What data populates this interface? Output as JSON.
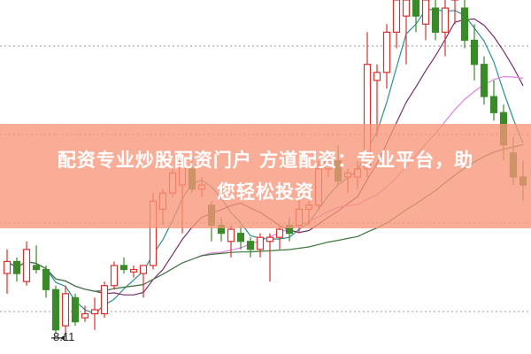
{
  "chart_data": {
    "type": "candlestick",
    "ylim": [
      7.9,
      12.3
    ],
    "grid": "dotted horizontal",
    "low_marker": "8.11",
    "candles": [
      [
        8.9,
        9.2,
        8.65,
        9.05
      ],
      [
        9.05,
        9.1,
        8.8,
        8.9
      ],
      [
        8.8,
        9.3,
        8.75,
        9.2
      ],
      [
        9.0,
        9.25,
        8.9,
        8.95
      ],
      [
        8.95,
        9.0,
        8.6,
        8.7
      ],
      [
        8.7,
        8.75,
        8.15,
        8.2
      ],
      [
        8.25,
        8.75,
        8.11,
        8.65
      ],
      [
        8.6,
        8.65,
        8.25,
        8.3
      ],
      [
        8.35,
        8.5,
        8.3,
        8.4
      ],
      [
        8.4,
        8.6,
        8.2,
        8.45
      ],
      [
        8.4,
        8.8,
        8.35,
        8.75
      ],
      [
        8.75,
        9.05,
        8.7,
        9.0
      ],
      [
        9.0,
        9.1,
        8.9,
        8.95
      ],
      [
        8.92,
        9.0,
        8.85,
        8.95
      ],
      [
        8.9,
        9.0,
        8.6,
        9.0
      ],
      [
        9.0,
        9.9,
        8.95,
        9.8
      ],
      [
        9.7,
        9.95,
        9.5,
        9.9
      ],
      [
        9.9,
        10.2,
        9.85,
        10.15
      ],
      [
        10.0,
        10.3,
        9.4,
        10.3
      ],
      [
        10.2,
        10.3,
        9.9,
        9.95
      ],
      [
        9.95,
        10.1,
        9.85,
        10.0
      ],
      [
        9.75,
        9.8,
        9.3,
        9.5
      ],
      [
        9.5,
        9.6,
        9.3,
        9.4
      ],
      [
        9.3,
        9.5,
        9.1,
        9.45
      ],
      [
        9.4,
        9.5,
        9.2,
        9.3
      ],
      [
        9.3,
        9.35,
        9.1,
        9.2
      ],
      [
        9.2,
        9.4,
        9.1,
        9.35
      ],
      [
        9.3,
        9.4,
        8.8,
        9.35
      ],
      [
        9.35,
        9.5,
        9.2,
        9.45
      ],
      [
        9.5,
        9.6,
        9.3,
        9.4
      ],
      [
        9.5,
        9.9,
        9.4,
        9.7
      ],
      [
        9.7,
        9.8,
        9.5,
        9.75
      ],
      [
        9.75,
        10.3,
        9.7,
        10.2
      ],
      [
        10.2,
        10.4,
        10.1,
        10.3
      ],
      [
        10.3,
        10.5,
        10.0,
        10.05
      ],
      [
        10.1,
        10.2,
        9.9,
        10.15
      ],
      [
        10.1,
        10.3,
        9.95,
        10.2
      ],
      [
        10.2,
        11.9,
        10.1,
        11.5
      ],
      [
        11.3,
        11.5,
        10.6,
        11.4
      ],
      [
        11.4,
        12.0,
        11.2,
        11.9
      ],
      [
        11.9,
        12.4,
        11.7,
        12.3
      ],
      [
        12.1,
        12.4,
        11.5,
        12.3
      ],
      [
        12.3,
        12.5,
        11.9,
        12.1
      ],
      [
        12.0,
        12.5,
        11.8,
        12.3
      ],
      [
        12.2,
        12.4,
        11.8,
        11.9
      ],
      [
        11.9,
        12.3,
        11.6,
        12.2
      ],
      [
        12.3,
        12.5,
        12.0,
        12.35
      ],
      [
        12.2,
        12.3,
        11.7,
        11.8
      ],
      [
        11.8,
        12.0,
        11.3,
        11.5
      ],
      [
        11.5,
        11.6,
        11.0,
        11.1
      ],
      [
        11.1,
        11.3,
        10.8,
        10.9
      ],
      [
        10.9,
        11.0,
        10.3,
        10.5
      ],
      [
        10.4,
        10.6,
        10.0,
        10.1
      ],
      [
        10.1,
        10.3,
        9.8,
        10.0
      ]
    ],
    "colors": {
      "up": "#d9312e",
      "down": "#3a8a2a",
      "ma": [
        "#2a8f8f",
        "#7a2f6a",
        "#e080e0",
        "#3d7a3d"
      ],
      "grid": "#999999"
    }
  },
  "banner": {
    "line1": "配资专业炒股配资门户 方道配资：专业平台，助",
    "line2": "您轻松投资"
  }
}
